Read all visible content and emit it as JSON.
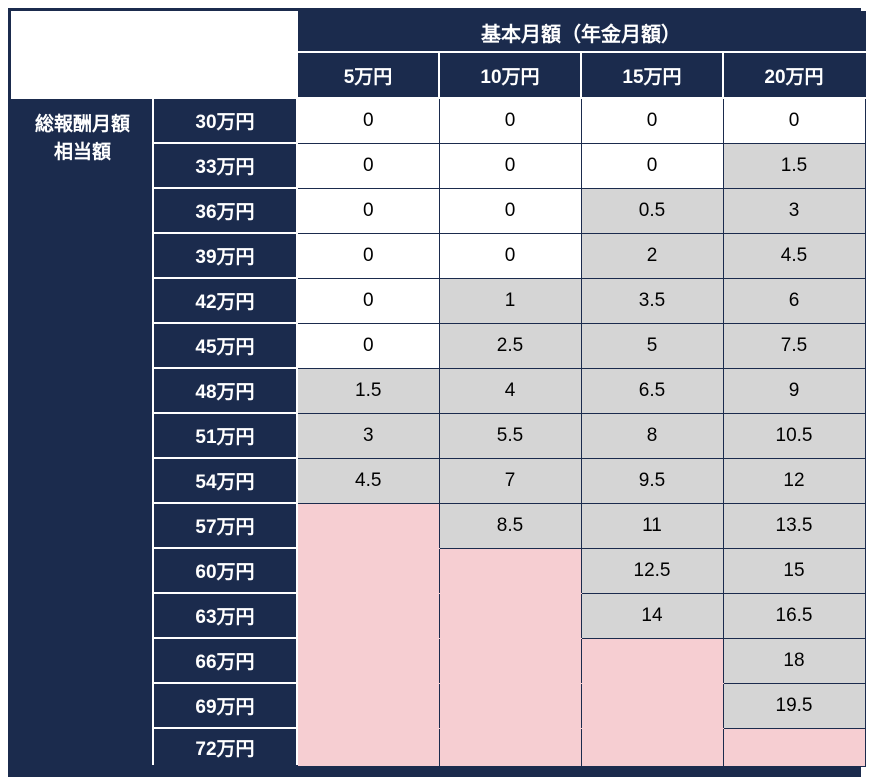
{
  "chart_data": {
    "type": "table",
    "col_group_header": "基本月額（年金月額）",
    "columns": [
      "5万円",
      "10万円",
      "15万円",
      "20万円"
    ],
    "row_group_header_lines": [
      "総報酬月額",
      "相当額"
    ],
    "rows": [
      {
        "label": "30万円",
        "values": [
          "0",
          "0",
          "0",
          "0"
        ],
        "bg": [
          "white",
          "white",
          "white",
          "white"
        ]
      },
      {
        "label": "33万円",
        "values": [
          "0",
          "0",
          "0",
          "1.5"
        ],
        "bg": [
          "white",
          "white",
          "white",
          "gray"
        ]
      },
      {
        "label": "36万円",
        "values": [
          "0",
          "0",
          "0.5",
          "3"
        ],
        "bg": [
          "white",
          "white",
          "gray",
          "gray"
        ]
      },
      {
        "label": "39万円",
        "values": [
          "0",
          "0",
          "2",
          "4.5"
        ],
        "bg": [
          "white",
          "white",
          "gray",
          "gray"
        ]
      },
      {
        "label": "42万円",
        "values": [
          "0",
          "1",
          "3.5",
          "6"
        ],
        "bg": [
          "white",
          "gray",
          "gray",
          "gray"
        ]
      },
      {
        "label": "45万円",
        "values": [
          "0",
          "2.5",
          "5",
          "7.5"
        ],
        "bg": [
          "white",
          "gray",
          "gray",
          "gray"
        ]
      },
      {
        "label": "48万円",
        "values": [
          "1.5",
          "4",
          "6.5",
          "9"
        ],
        "bg": [
          "gray",
          "gray",
          "gray",
          "gray"
        ]
      },
      {
        "label": "51万円",
        "values": [
          "3",
          "5.5",
          "8",
          "10.5"
        ],
        "bg": [
          "gray",
          "gray",
          "gray",
          "gray"
        ]
      },
      {
        "label": "54万円",
        "values": [
          "4.5",
          "7",
          "9.5",
          "12"
        ],
        "bg": [
          "gray",
          "gray",
          "gray",
          "gray"
        ]
      },
      {
        "label": "57万円",
        "values": [
          "",
          "8.5",
          "11",
          "13.5"
        ],
        "bg": [
          "pink",
          "gray",
          "gray",
          "gray"
        ]
      },
      {
        "label": "60万円",
        "values": [
          "",
          "",
          "12.5",
          "15"
        ],
        "bg": [
          "pink",
          "pink",
          "gray",
          "gray"
        ]
      },
      {
        "label": "63万円",
        "values": [
          "",
          "",
          "14",
          "16.5"
        ],
        "bg": [
          "pink",
          "pink",
          "gray",
          "gray"
        ]
      },
      {
        "label": "66万円",
        "values": [
          "",
          "",
          "",
          "18"
        ],
        "bg": [
          "pink",
          "pink",
          "pink",
          "gray"
        ]
      },
      {
        "label": "69万円",
        "values": [
          "",
          "",
          "",
          "19.5"
        ],
        "bg": [
          "pink",
          "pink",
          "pink",
          "gray"
        ]
      },
      {
        "label": "72万円",
        "values": [
          "",
          "",
          "",
          ""
        ],
        "bg": [
          "pink",
          "pink",
          "pink",
          "pink"
        ]
      }
    ],
    "colors": {
      "header_bg": "#1b2b4d",
      "header_text": "#ffffff",
      "cell_white": "#ffffff",
      "cell_gray": "#d5d5d5",
      "cell_pink": "#f6ced2",
      "grid_border": "#1b2b4d"
    }
  }
}
